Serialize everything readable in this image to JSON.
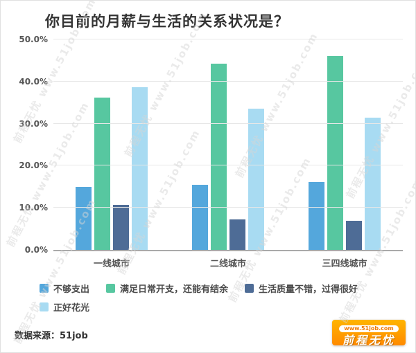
{
  "title": "你目前的月薪与生活的关系状况是？",
  "watermark": {
    "text": "前程无忧 www.51job.com",
    "count": 9
  },
  "footer": {
    "source": "数据来源：51job"
  },
  "logo": {
    "url_text": "www.51job.com",
    "brand_text": "前程无忧",
    "color": "#FF9500"
  },
  "chart_data": {
    "type": "bar",
    "title": "你目前的月薪与生活的关系状况是？",
    "categories": [
      "一线城市",
      "二线城市",
      "三四线城市"
    ],
    "series": [
      {
        "name": "不够支出",
        "color": "#54A7DC",
        "values": [
          15.0,
          15.4,
          16.1
        ]
      },
      {
        "name": "满足日常开支，还能有结余",
        "color": "#57C7A0",
        "values": [
          36.2,
          44.2,
          46.1
        ]
      },
      {
        "name": "生活质量不错，过得很好",
        "color": "#4E6C96",
        "values": [
          10.7,
          7.3,
          6.9
        ]
      },
      {
        "name": "正好花光",
        "color": "#A8DBF2",
        "values": [
          38.6,
          33.6,
          31.4
        ]
      }
    ],
    "xlabel": "",
    "ylabel": "",
    "ylim": [
      0,
      50
    ],
    "yticks": [
      0,
      10,
      20,
      30,
      40,
      50
    ],
    "ytick_labels": [
      "0.0%",
      "10.0%",
      "20.0%",
      "30.0%",
      "40.0%",
      "50.0%"
    ],
    "grid": true,
    "legend_position": "bottom"
  }
}
